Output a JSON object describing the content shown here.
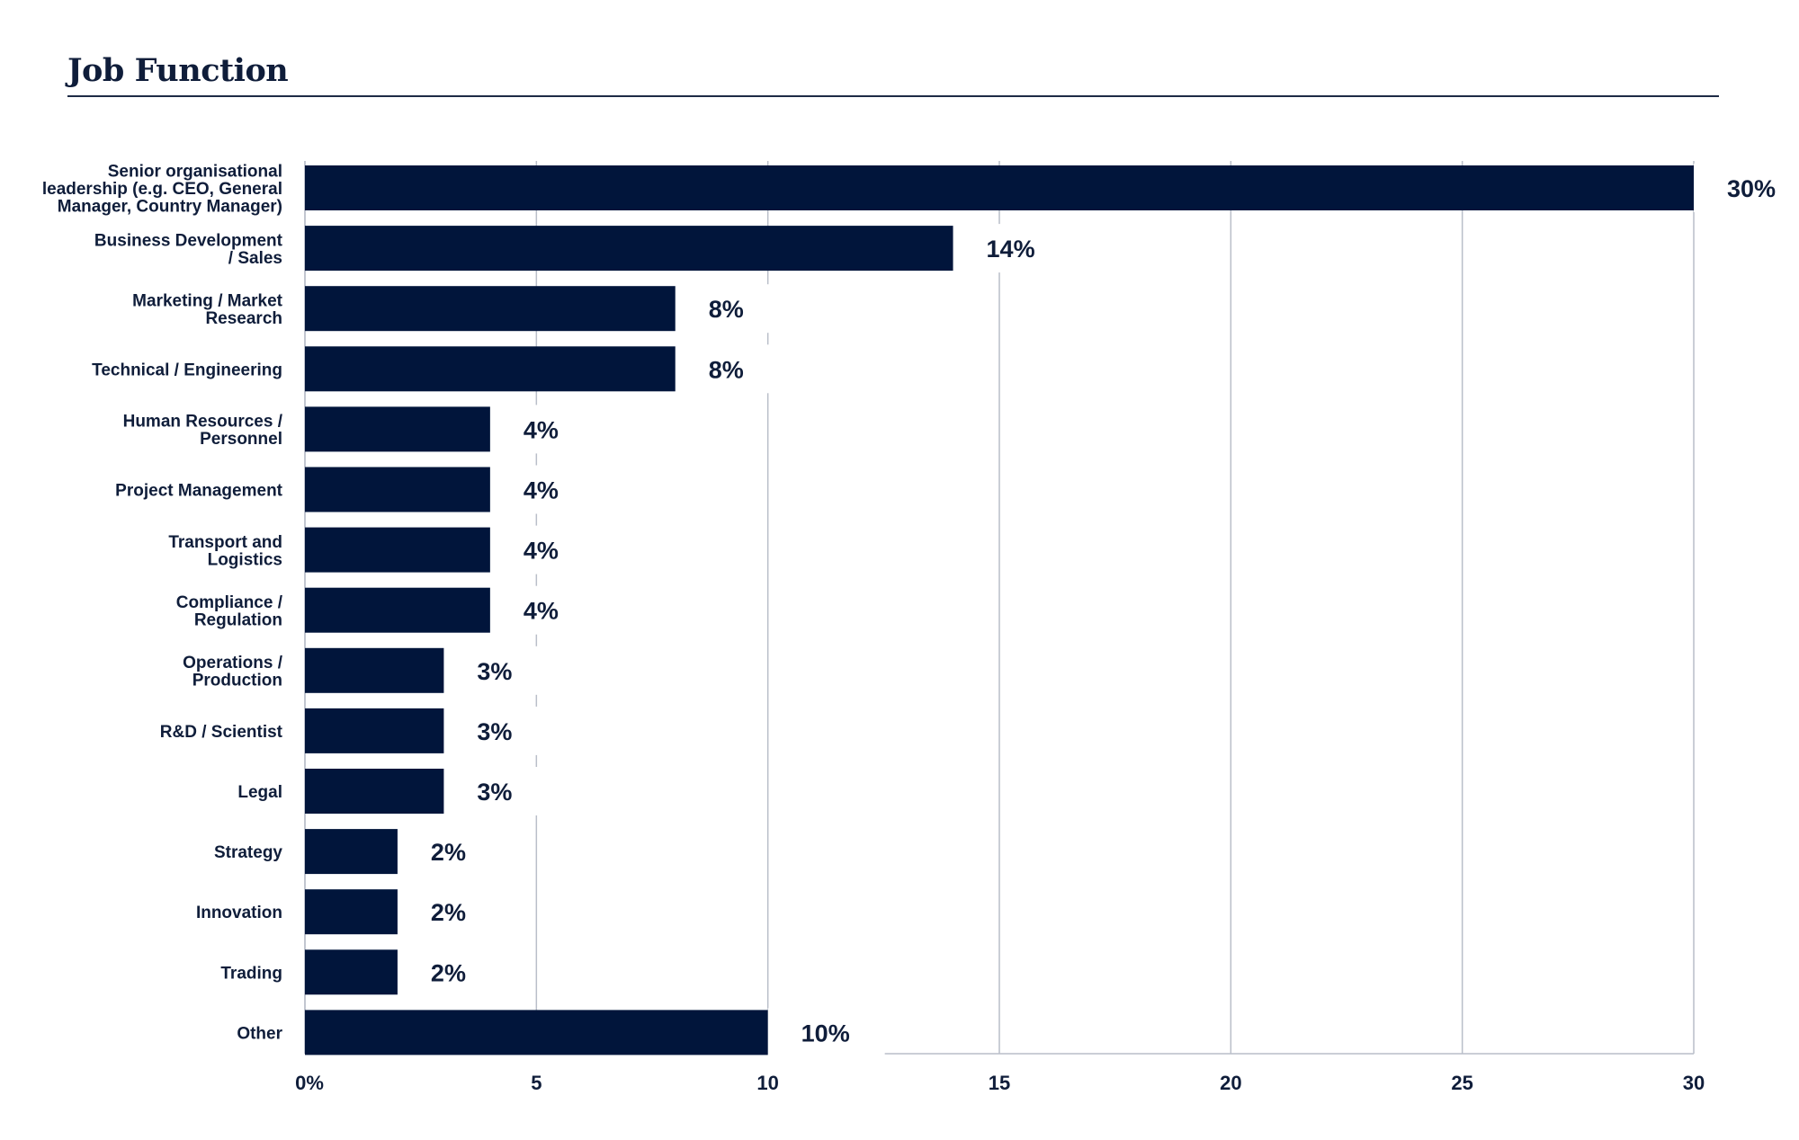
{
  "chart_data": {
    "type": "bar",
    "orientation": "horizontal",
    "title": "Job Function",
    "categories": [
      [
        "Senior organisational",
        "leadership (e.g. CEO, General",
        "Manager, Country Manager)"
      ],
      [
        "Business Development",
        "/ Sales"
      ],
      [
        "Marketing / Market",
        "Research"
      ],
      [
        "Technical / Engineering"
      ],
      [
        "Human Resources /",
        "Personnel"
      ],
      [
        "Project Management"
      ],
      [
        "Transport and",
        "Logistics"
      ],
      [
        "Compliance /",
        "Regulation"
      ],
      [
        "Operations /",
        "Production"
      ],
      [
        "R&D / Scientist"
      ],
      [
        "Legal"
      ],
      [
        "Strategy"
      ],
      [
        "Innovation"
      ],
      [
        "Trading"
      ],
      [
        "Other"
      ]
    ],
    "values": [
      30,
      14,
      8,
      8,
      4,
      4,
      4,
      4,
      3,
      3,
      3,
      2,
      2,
      2,
      10
    ],
    "value_labels": [
      "30%",
      "14%",
      "8%",
      "8%",
      "4%",
      "4%",
      "4%",
      "4%",
      "3%",
      "3%",
      "3%",
      "2%",
      "2%",
      "2%",
      "10%"
    ],
    "xlim": [
      0,
      30
    ],
    "xticks": [
      0,
      5,
      10,
      15,
      20,
      25,
      30
    ],
    "xtick_labels": [
      "0%",
      "5",
      "10",
      "15",
      "20",
      "25",
      "30"
    ],
    "xlabel": "",
    "ylabel": "",
    "grid": "vertical",
    "legend": "none",
    "colors": {
      "bar": "#01153b",
      "text": "#0f1d3a",
      "grid": "#b9bec9"
    }
  }
}
